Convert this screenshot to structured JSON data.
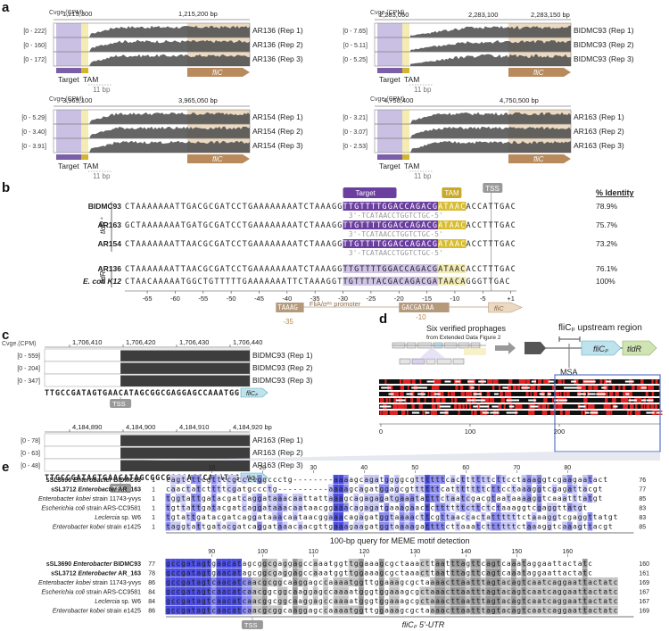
{
  "panel_a": {
    "label": "a",
    "cvge_label": "Cvge.(CPM)",
    "target_label": "Target",
    "tam_label": "TAM",
    "gap_label": "11 bp",
    "gene_label": "fliC",
    "subpanels": [
      {
        "id": "AR136",
        "coord_left": "1,215,300",
        "coord_right": "1,215,200 bp",
        "tracks": [
          {
            "scale": "[0 - 222]",
            "name": "AR136 (Rep 1)"
          },
          {
            "scale": "[0 - 160]",
            "name": "AR136 (Rep 2)"
          },
          {
            "scale": "[0 - 172]",
            "name": "AR136 (Rep 3)"
          }
        ]
      },
      {
        "id": "BIDMC93",
        "coord_left": "2,283,050",
        "coord_right": "2,283,100",
        "coord_right2": "2,283,150 bp",
        "tracks": [
          {
            "scale": "[0 - 7.65]",
            "name": "BIDMC93 (Rep 1)"
          },
          {
            "scale": "[0 - 5.11]",
            "name": "BIDMC93 (Rep 2)"
          },
          {
            "scale": "[0 - 5.25]",
            "name": "BIDMC93 (Rep 3)"
          }
        ]
      },
      {
        "id": "AR154",
        "coord_left": "3,965,100",
        "coord_right": "3,965,050 bp",
        "tracks": [
          {
            "scale": "[0 - 5.29]",
            "name": "AR154 (Rep 1)"
          },
          {
            "scale": "[0 - 3.40]",
            "name": "AR154 (Rep 2)"
          },
          {
            "scale": "[0 - 3.91]",
            "name": "AR154 (Rep 3)"
          }
        ]
      },
      {
        "id": "AR163",
        "coord_left": "4,750,400",
        "coord_right": "4,750,500 bp",
        "tracks": [
          {
            "scale": "[0 - 3.21]",
            "name": "AR163 (Rep 1)"
          },
          {
            "scale": "[0 - 3.07]",
            "name": "AR163 (Rep 2)"
          },
          {
            "scale": "[0 - 2.53]",
            "name": "AR163 (Rep 3)"
          }
        ]
      }
    ]
  },
  "panel_b": {
    "label": "b",
    "target_label": "Target",
    "tam_label": "TAM",
    "tss_label": "TSS",
    "identity_header": "% Identity",
    "group1": "tldR⁺",
    "group2": "tldR⁻",
    "rows": [
      {
        "name": "BIDMC93",
        "seq": "CTAAAAAAATTGACGCGATCCTGAAAAAAAATCTAAAGGTTGTTTTGGACCAGACGATAACACCATTGAC",
        "identity": "78.9%"
      },
      {
        "name": "AR163",
        "seq": "GCTAAAAAAATGATGCGATCCTGAAAAAAAATCTAAAGGTTGTTTTGGACCAGACGATAACACCTTTGAC",
        "identity": "75.7%"
      },
      {
        "name": "AR154",
        "seq": "CTAAAAAAATTAACGCGATCCTGAAAAAAAATCTAAAGGTTGTTTTGGACCAGACGATAACACCTTTGAC",
        "identity": "73.2%"
      },
      {
        "name": "AR136",
        "seq": "CTAAAAAAATTAACGCGATCCTGAAAAAAAATCTAAAGGTTGTTTTGGACCAGACGATAACACCTTTGAC",
        "identity": "76.1%"
      },
      {
        "name": "E. coli K12",
        "seq": "CTAACAAAAATGGCTGTTTTTGAAAAAAATTCTAAAGGTTGTTTTACGACAGACGATAACAGGGTTGAC",
        "identity": "100%"
      }
    ],
    "spacer": "3'-TCATAACCTGGTCTGC-5'",
    "axis_ticks": [
      "-65",
      "-60",
      "-55",
      "-50",
      "-45",
      "-40",
      "-35",
      "-30",
      "-25",
      "-20",
      "-15",
      "-10",
      "-5",
      "+1"
    ],
    "promoter_box1": "TAAAG",
    "promoter_label": "FliA/σ²⁸ promoter",
    "promoter_box2": "GACGATAA",
    "minus35": "-35",
    "minus10": "-10",
    "gene_label": "fliC"
  },
  "panel_c": {
    "label": "c",
    "cvge_label": "Cvge.(CPM)",
    "tss_label": "TSS",
    "gene_label": "fliCₚ",
    "top": {
      "coords": [
        "1,706,410",
        "1,706,420",
        "1,706,430",
        "1,706,440"
      ],
      "tracks": [
        {
          "scale": "[0 - 559]",
          "name": "BIDMC93 (Rep 1)"
        },
        {
          "scale": "[0 - 204]",
          "name": "BIDMC93 (Rep 2)"
        },
        {
          "scale": "[0 - 347]",
          "name": "BIDMC93 (Rep 3)"
        }
      ],
      "seq": "TTGCCGATAGTGAACATAGCGGCGAGGAGCCAAATGG"
    },
    "bottom": {
      "coords": [
        "4,184,890",
        "4,184,900",
        "4,184,910",
        "4,184,920 bp"
      ],
      "tracks": [
        {
          "scale": "[0 - 78]",
          "name": "AR163 (Rep 1)"
        },
        {
          "scale": "[0 - 63]",
          "name": "AR163 (Rep 2)"
        },
        {
          "scale": "[0 - 48]",
          "name": "AR163 (Rep 3)"
        }
      ],
      "seq": "TTGCCGATAGTGAACATAGCGGCGAGGAGCCAAATGG"
    }
  },
  "panel_d": {
    "label": "d",
    "title": "Six verified prophages",
    "subtitle": "from Extended Data Figure 2",
    "upstream_label": "fliCₚ upstream region",
    "gene1": "fliCₚ",
    "gene2": "tldR",
    "msa_label": "MSA",
    "axis_ticks": [
      "0",
      "100",
      "200"
    ]
  },
  "panel_e": {
    "label": "e",
    "names": [
      {
        "bold1": "sSL3690",
        "bold2": "Enterobacter",
        "rest": " BIDMC93"
      },
      {
        "bold1": "sSL3712",
        "bold2": "Enterobacter",
        "rest": " AR_163"
      },
      {
        "bold1": "",
        "bold2": "Enterobacter kobei",
        "rest": " strain 11743-yvys"
      },
      {
        "bold1": "",
        "bold2": "Escherichia coli",
        "rest": " strain ARS-CC9581"
      },
      {
        "bold1": "",
        "bold2": "Leclercia",
        "rest": " sp. W6"
      },
      {
        "bold1": "",
        "bold2": "Enterobacter kobei",
        "rest": " strain e1425"
      }
    ],
    "block1": {
      "ruler": [
        "10",
        "20",
        "30",
        "40",
        "50",
        "60",
        "70",
        "80"
      ],
      "starts": [
        "1",
        "1",
        "1",
        "1",
        "1",
        "1"
      ],
      "ends": [
        "76",
        "77",
        "85",
        "83",
        "83",
        "85"
      ],
      "seqs": [
        "cagtcttcgtttcgccctggccctg--------aaaagcagatggggcgttttttcacttttttcttcctaaaggtcgaagaatact",
        "caactatcttttcgatgccctg----------aaaagcagatggagcgttttttcatttttttcttcctaaaggtcgagattacgt",
        "tggtattgatacgatcaggataaacaattattaaagcagagagatgaaatatttctaatcgacgtaataaaaggtcaaatttatgt",
        "tgttattgatacgatcaggataaacaataacggaaacagagatgaaagaactcttttttcttctctaaaggtcgaggttatgt",
        "tgtattgatacgatcaggataaacaataacggaaacagagatggtaaaacttcgttaaccactattttttctaaaggtcgaggttatgt",
        "taggtattgatacgatcaggataaacaacgttgaaagaagatggtaaaagattttcttaaatcttttttctaaaggtcaaagttacgt"
      ],
      "caption": "100-bp query for MEME motif detection"
    },
    "block2": {
      "ruler": [
        "90",
        "100",
        "110",
        "120",
        "130",
        "140",
        "150",
        "160"
      ],
      "starts": [
        "77",
        "78",
        "86",
        "84",
        "84",
        "86"
      ],
      "ends": [
        "160",
        "161",
        "169",
        "167",
        "167",
        "169"
      ],
      "seqs": [
        "gccgatagtgaacatagcggcgaggagccaaatggttggaaagcgctaaacttaatttagttcagtcaaataggaattactatc",
        "gccgatagtgaacatagcggcgaggagccaaatggttggaaagcgctaaacttaatttagttcagtcaaataggaattactatc",
        "gccgatagtcaacatcaacgcggcaaggagccaaaatggttggaaagcgctaaaacttaatttagtacagtcaatcaggaattactatc",
        "gccgatagtcaacatcaacggcggcaaggagccaaaatgggtggaaagcgctaaacttaatttagtacagtcaatcaggaattactatc",
        "gccgatagtcaacatcaacggcggcaaggagccaaaatgggtggaaagcgctaaacttaatttagtacagtcaatcaggaattactatc",
        "gccgatagtcaacatcaacgcggcaaggagccaaaatggttggaaagcgctaaaacttaatttagtacagtcaatcaggaattactatc"
      ],
      "tss_label": "TSS",
      "caption": "fliCₚ 5'-UTR"
    }
  }
}
